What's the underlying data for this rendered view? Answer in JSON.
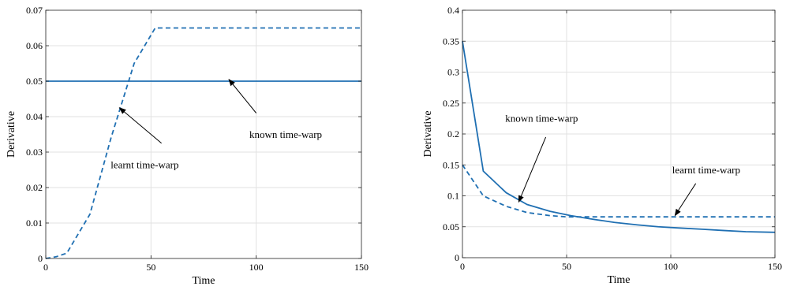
{
  "chart_data": [
    {
      "type": "line",
      "xlabel": "Time",
      "ylabel": "Derivative",
      "xlim": [
        0,
        150
      ],
      "ylim": [
        0,
        0.07
      ],
      "xticks": [
        0,
        50,
        100,
        150
      ],
      "yticks": [
        0,
        0.01,
        0.02,
        0.03,
        0.04,
        0.05,
        0.06,
        0.07
      ],
      "ytick_labels": [
        "0",
        "0.01",
        "0.02",
        "0.03",
        "0.04",
        "0.05",
        "0.06",
        "0.07"
      ],
      "grid": true,
      "color": "#1f6fb2",
      "series": [
        {
          "style": "solid",
          "x": [
            0,
            150
          ],
          "y": [
            0.05,
            0.05
          ]
        },
        {
          "style": "dashed",
          "x": [
            0,
            5,
            10,
            21,
            31,
            42,
            50,
            52,
            150
          ],
          "y": [
            0,
            0.0005,
            0.0015,
            0.0125,
            0.034,
            0.055,
            0.063,
            0.065,
            0.065
          ]
        }
      ],
      "annotations": [
        {
          "text": "known time-warp",
          "x": 114,
          "y": 0.034,
          "arrow_from": [
            100,
            0.041
          ],
          "arrow_to": [
            87,
            0.0505
          ]
        },
        {
          "text": "learnt time-warp",
          "x": 47,
          "y": 0.0255,
          "arrow_from": [
            55,
            0.0325
          ],
          "arrow_to": [
            35,
            0.0425
          ]
        }
      ]
    },
    {
      "type": "line",
      "xlabel": "Time",
      "ylabel": "Derivative",
      "xlim": [
        0,
        150
      ],
      "ylim": [
        0,
        0.4
      ],
      "xticks": [
        0,
        50,
        100,
        150
      ],
      "yticks": [
        0,
        0.05,
        0.1,
        0.15,
        0.2,
        0.25,
        0.3,
        0.35,
        0.4
      ],
      "ytick_labels": [
        "0",
        "0.05",
        "0.1",
        "0.15",
        "0.2",
        "0.25",
        "0.3",
        "0.35",
        "0.4"
      ],
      "grid": true,
      "color": "#1f6fb2",
      "series": [
        {
          "style": "solid",
          "x": [
            0,
            10,
            21,
            31,
            42,
            52,
            63,
            73,
            84,
            94,
            104,
            115,
            125,
            136,
            150
          ],
          "y": [
            0.35,
            0.14,
            0.105,
            0.086,
            0.075,
            0.068,
            0.062,
            0.057,
            0.053,
            0.05,
            0.048,
            0.046,
            0.044,
            0.042,
            0.041
          ]
        },
        {
          "style": "dashed",
          "x": [
            0,
            10,
            21,
            31,
            42,
            50,
            150
          ],
          "y": [
            0.15,
            0.1,
            0.083,
            0.073,
            0.068,
            0.066,
            0.066
          ]
        }
      ],
      "annotations": [
        {
          "text": "known time-warp",
          "x": 38,
          "y": 0.22,
          "arrow_from": [
            40,
            0.195
          ],
          "arrow_to": [
            27,
            0.09
          ]
        },
        {
          "text": "learnt time-warp",
          "x": 117,
          "y": 0.136,
          "arrow_from": [
            112,
            0.12
          ],
          "arrow_to": [
            102,
            0.068
          ]
        }
      ]
    }
  ]
}
